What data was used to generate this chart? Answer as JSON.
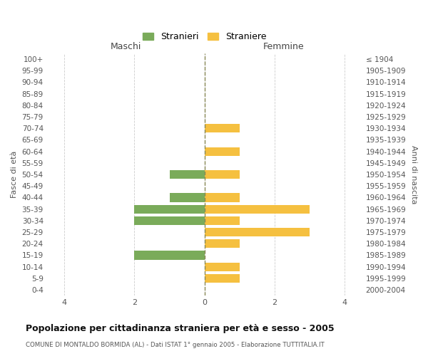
{
  "age_groups": [
    "100+",
    "95-99",
    "90-94",
    "85-89",
    "80-84",
    "75-79",
    "70-74",
    "65-69",
    "60-64",
    "55-59",
    "50-54",
    "45-49",
    "40-44",
    "35-39",
    "30-34",
    "25-29",
    "20-24",
    "15-19",
    "10-14",
    "5-9",
    "0-4"
  ],
  "birth_years": [
    "≤ 1904",
    "1905-1909",
    "1910-1914",
    "1915-1919",
    "1920-1924",
    "1925-1929",
    "1930-1934",
    "1935-1939",
    "1940-1944",
    "1945-1949",
    "1950-1954",
    "1955-1959",
    "1960-1964",
    "1965-1969",
    "1970-1974",
    "1975-1979",
    "1980-1984",
    "1985-1989",
    "1990-1994",
    "1995-1999",
    "2000-2004"
  ],
  "maschi": [
    0,
    0,
    0,
    0,
    0,
    0,
    0,
    0,
    0,
    0,
    1,
    0,
    1,
    2,
    2,
    0,
    0,
    2,
    0,
    0,
    0
  ],
  "femmine": [
    0,
    0,
    0,
    0,
    0,
    0,
    1,
    0,
    1,
    0,
    1,
    0,
    1,
    3,
    1,
    3,
    1,
    0,
    1,
    1,
    0
  ],
  "color_maschi": "#7aab5a",
  "color_femmine": "#f5c040",
  "background_color": "#ffffff",
  "grid_color": "#cccccc",
  "center_line_color": "#888855",
  "title": "Popolazione per cittadinanza straniera per età e sesso - 2005",
  "subtitle": "COMUNE DI MONTALDO BORMIDA (AL) - Dati ISTAT 1° gennaio 2005 - Elaborazione TUTTITALIA.IT",
  "xlabel_maschi": "Maschi",
  "xlabel_femmine": "Femmine",
  "ylabel_left": "Fasce di età",
  "ylabel_right": "Anni di nascita",
  "legend_stranieri": "Stranieri",
  "legend_straniere": "Straniere",
  "xlim": 4.5,
  "bar_height": 0.75
}
